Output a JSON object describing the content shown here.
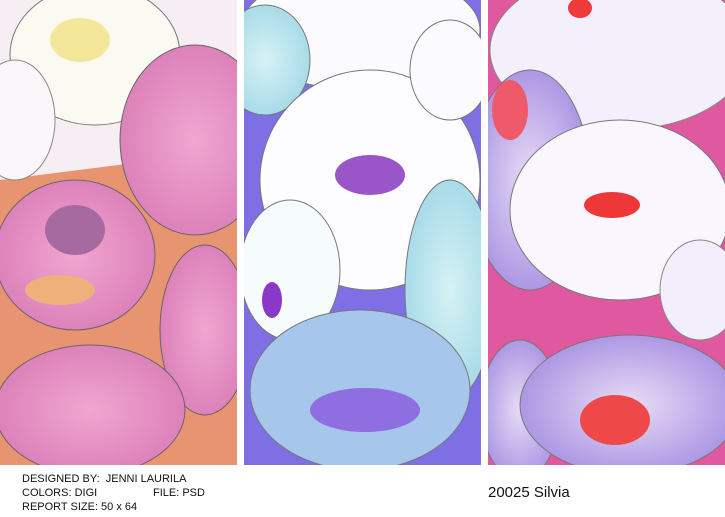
{
  "credits": {
    "designed_by": "DESIGNED BY:  JENNI LAURILA",
    "colors": "COLORS: DIGI",
    "file": "FILE: PSD",
    "report_size": "REPORT SIZE: 50 x 64"
  },
  "title": "20025 Silvia"
}
